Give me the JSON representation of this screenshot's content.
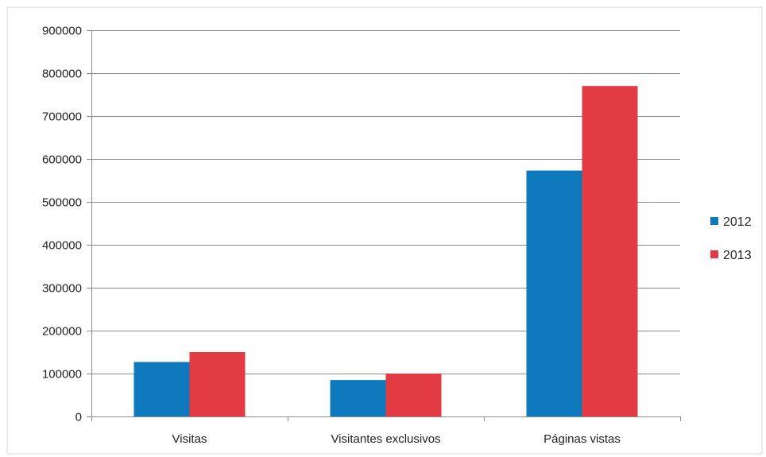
{
  "chart_data": {
    "type": "bar",
    "categories": [
      "Visitas",
      "Visitantes exclusivos",
      "Páginas vistas"
    ],
    "series": [
      {
        "name": "2012",
        "color": "#0E79BD",
        "values": [
          127000,
          85000,
          573000
        ]
      },
      {
        "name": "2013",
        "color": "#E23B44",
        "values": [
          150000,
          100000,
          770000
        ]
      }
    ],
    "ylim": [
      0,
      900000
    ],
    "yticks": [
      0,
      100000,
      200000,
      300000,
      400000,
      500000,
      600000,
      700000,
      800000,
      900000
    ],
    "ytick_labels": [
      "0",
      "100000",
      "200000",
      "300000",
      "400000",
      "500000",
      "600000",
      "700000",
      "800000",
      "900000"
    ],
    "grid": true,
    "legend_position": "right"
  }
}
